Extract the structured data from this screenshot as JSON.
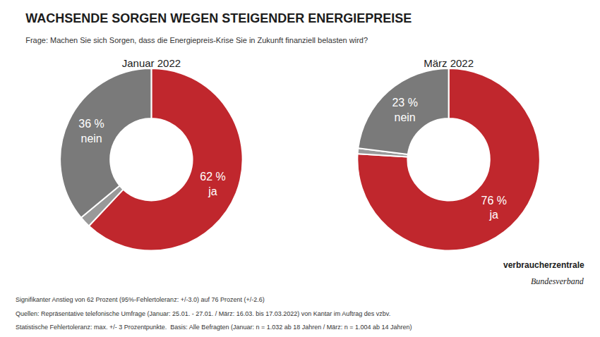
{
  "title": "WACHSENDE SORGEN WEGEN STEIGENDER ENERGIEPREISE",
  "subtitle": "Frage: Machen Sie sich Sorgen, dass die Energiepreis-Krise Sie in Zukunft finanziell belasten wird?",
  "footer": [
    "Signifikanter Anstieg von 62 Prozent (95%-Fehlertoleranz: +/-3.0) auf 76 Prozent (+/-2.6)",
    "Quellen: Repräsentative telefonische Umfrage (Januar: 25.01. - 27.01. / März: 16.03. bis 17.03.2022) von Kantar im Auftrag des vzbv.",
    "Statistische Fehlertoleranz: max. +/- 3 Prozentpunkte.  Basis: Alle Befragten (Januar: n = 1.032 ab 18 Jahren / März: n = 1.004 ab 14 Jahren)"
  ],
  "logo": [
    "verbraucherzentrale",
    "Bundesverband"
  ],
  "chart_data": [
    {
      "type": "pie",
      "title": "Januar 2022",
      "categories": [
        "ja",
        null,
        "nein"
      ],
      "values": [
        62,
        2,
        36
      ],
      "value_labels": [
        "62 %",
        null,
        "36 %"
      ],
      "colors": [
        "#c0272d",
        "#999999",
        "#7a7a7a"
      ],
      "data_labels": true
    },
    {
      "type": "pie",
      "title": "März 2022",
      "categories": [
        "ja",
        null,
        "nein"
      ],
      "values": [
        76,
        1,
        23
      ],
      "value_labels": [
        "76 %",
        null,
        "23 %"
      ],
      "colors": [
        "#c0272d",
        "#999999",
        "#7a7a7a"
      ],
      "data_labels": true
    }
  ]
}
